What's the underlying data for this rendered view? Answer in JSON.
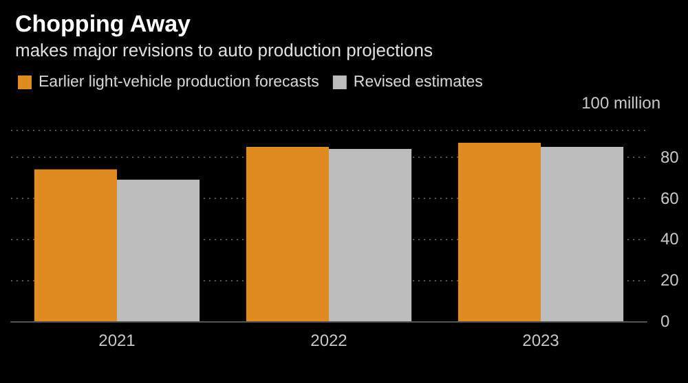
{
  "chart_data": {
    "type": "bar",
    "title": "Chopping Away",
    "subtitle": "makes major revisions to auto production projections",
    "ylabel": "100 million",
    "categories": [
      "2021",
      "2022",
      "2023"
    ],
    "series": [
      {
        "name": "Earlier light-vehicle production forecasts",
        "color": "#e08a22",
        "values": [
          74,
          85,
          87
        ]
      },
      {
        "name": "Revised estimates",
        "color": "#bdbdbd",
        "values": [
          69,
          84,
          85
        ]
      }
    ],
    "ylim": [
      0,
      93
    ],
    "yticks": [
      0,
      20,
      40,
      60,
      80
    ],
    "grid": "y",
    "legend": "top left"
  }
}
